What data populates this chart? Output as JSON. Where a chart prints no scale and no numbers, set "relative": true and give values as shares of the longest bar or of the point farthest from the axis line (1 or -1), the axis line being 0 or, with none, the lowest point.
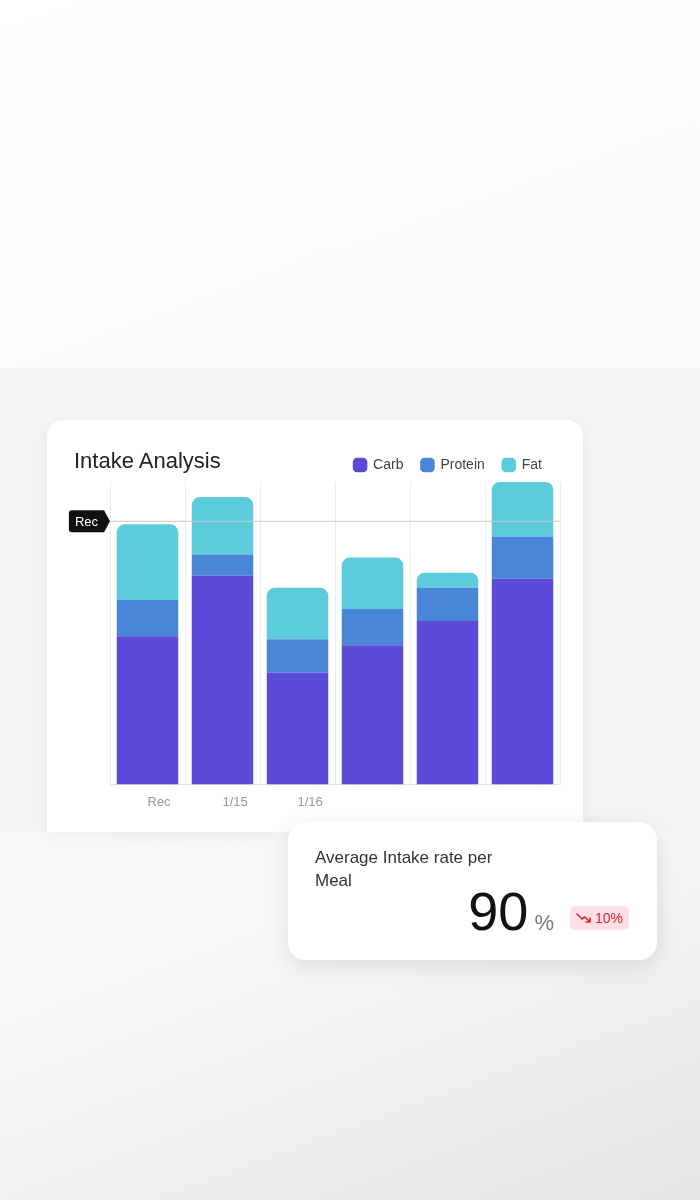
{
  "chart_data": [
    {
      "type": "bar",
      "title": "Intake Analysis",
      "relative": true,
      "stacked": true,
      "grid": "x",
      "legend": "top right",
      "categories": [
        "Rec",
        "1/15",
        "1/16",
        null,
        null,
        null
      ],
      "series": [
        {
          "name": "Carb",
          "color": "#5b4bd6",
          "values": [
            0.49,
            0.69,
            0.37,
            0.46,
            0.54,
            0.68
          ]
        },
        {
          "name": "Protein",
          "color": "#4a86d8",
          "values": [
            0.12,
            0.07,
            0.11,
            0.12,
            0.11,
            0.14
          ]
        },
        {
          "name": "Fat",
          "color": "#5ccbdc",
          "values": [
            0.25,
            0.19,
            0.17,
            0.17,
            0.05,
            0.18
          ]
        }
      ],
      "ref_lines": [
        {
          "axis": "y",
          "value": 0.87,
          "label": "Rec",
          "color": "#c8c8c8"
        }
      ]
    },
    {
      "type": "other",
      "title": "Average Intake rate per Meal",
      "annotations": [
        "90",
        "%",
        "10%"
      ]
    }
  ]
}
